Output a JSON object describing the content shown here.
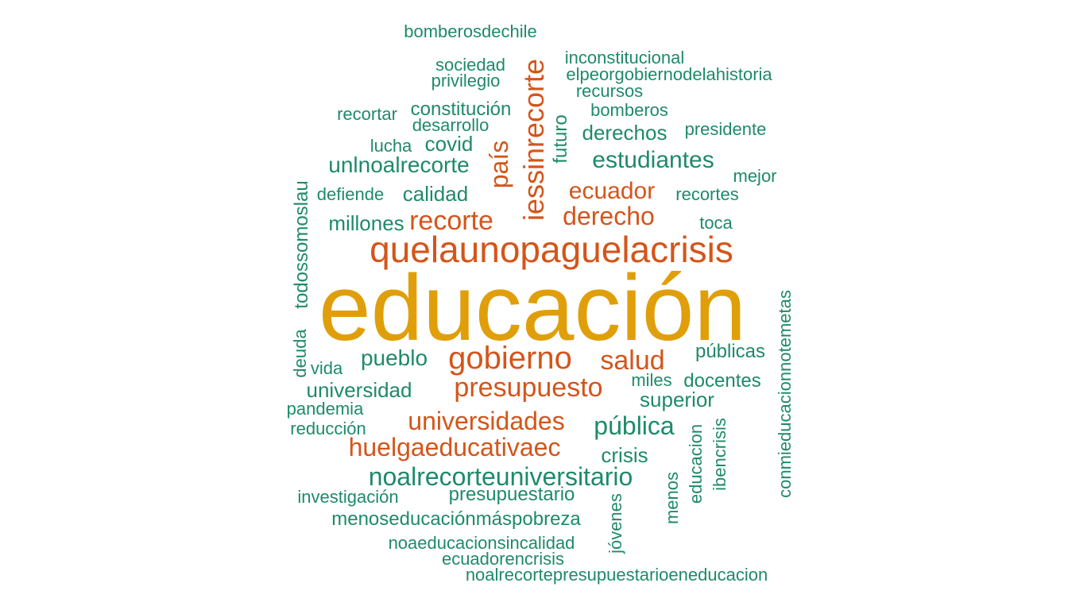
{
  "palette": {
    "top": "#E09F0A",
    "high": "#D4551A",
    "normal": "#1E8A6A"
  },
  "words": [
    {
      "id": "w0",
      "text": "educación",
      "tier": "top"
    },
    {
      "id": "w1",
      "text": "quelaunopaguelacrisis",
      "tier": "high"
    },
    {
      "id": "w2",
      "text": "iessinrecorte",
      "tier": "high"
    },
    {
      "id": "w3",
      "text": "país",
      "tier": "high"
    },
    {
      "id": "w4",
      "text": "recorte",
      "tier": "high"
    },
    {
      "id": "w5",
      "text": "derecho",
      "tier": "high"
    },
    {
      "id": "w6",
      "text": "ecuador",
      "tier": "high"
    },
    {
      "id": "w7",
      "text": "gobierno",
      "tier": "high"
    },
    {
      "id": "w8",
      "text": "salud",
      "tier": "high"
    },
    {
      "id": "w9",
      "text": "presupuesto",
      "tier": "high"
    },
    {
      "id": "w10",
      "text": "universidades",
      "tier": "high"
    },
    {
      "id": "w11",
      "text": "huelgaeducativaec",
      "tier": "high"
    },
    {
      "id": "w12",
      "text": "bomberosdechile",
      "tier": "normal"
    },
    {
      "id": "w13",
      "text": "sociedad",
      "tier": "normal"
    },
    {
      "id": "w14",
      "text": "privilegio",
      "tier": "normal"
    },
    {
      "id": "w15",
      "text": "inconstitucional",
      "tier": "normal"
    },
    {
      "id": "w16",
      "text": "elpeorgobiernodelahistoria",
      "tier": "normal"
    },
    {
      "id": "w17",
      "text": "recursos",
      "tier": "normal"
    },
    {
      "id": "w18",
      "text": "recortar",
      "tier": "normal"
    },
    {
      "id": "w19",
      "text": "constitución",
      "tier": "normal"
    },
    {
      "id": "w20",
      "text": "desarrollo",
      "tier": "normal"
    },
    {
      "id": "w21",
      "text": "bomberos",
      "tier": "normal"
    },
    {
      "id": "w22",
      "text": "futuro",
      "tier": "normal"
    },
    {
      "id": "w23",
      "text": "derechos",
      "tier": "normal"
    },
    {
      "id": "w24",
      "text": "presidente",
      "tier": "normal"
    },
    {
      "id": "w25",
      "text": "lucha",
      "tier": "normal"
    },
    {
      "id": "w26",
      "text": "covid",
      "tier": "normal"
    },
    {
      "id": "w27",
      "text": "estudiantes",
      "tier": "normal"
    },
    {
      "id": "w28",
      "text": "unlnoalrecorte",
      "tier": "normal"
    },
    {
      "id": "w29",
      "text": "mejor",
      "tier": "normal"
    },
    {
      "id": "w30",
      "text": "todossomoslau",
      "tier": "normal"
    },
    {
      "id": "w31",
      "text": "defiende",
      "tier": "normal"
    },
    {
      "id": "w32",
      "text": "calidad",
      "tier": "normal"
    },
    {
      "id": "w33",
      "text": "recortes",
      "tier": "normal"
    },
    {
      "id": "w34",
      "text": "millones",
      "tier": "normal"
    },
    {
      "id": "w35",
      "text": "toca",
      "tier": "normal"
    },
    {
      "id": "w36",
      "text": "conmieducacionnotemetas",
      "tier": "normal"
    },
    {
      "id": "w37",
      "text": "públicas",
      "tier": "normal"
    },
    {
      "id": "w38",
      "text": "deuda",
      "tier": "normal"
    },
    {
      "id": "w39",
      "text": "vida",
      "tier": "normal"
    },
    {
      "id": "w40",
      "text": "pueblo",
      "tier": "normal"
    },
    {
      "id": "w41",
      "text": "miles",
      "tier": "normal"
    },
    {
      "id": "w42",
      "text": "docentes",
      "tier": "normal"
    },
    {
      "id": "w43",
      "text": "universidad",
      "tier": "normal"
    },
    {
      "id": "w44",
      "text": "superior",
      "tier": "normal"
    },
    {
      "id": "w45",
      "text": "pandemia",
      "tier": "normal"
    },
    {
      "id": "w46",
      "text": "pública",
      "tier": "normal"
    },
    {
      "id": "w47",
      "text": "ibencrisis",
      "tier": "normal"
    },
    {
      "id": "w48",
      "text": "educacion",
      "tier": "normal"
    },
    {
      "id": "w49",
      "text": "reducción",
      "tier": "normal"
    },
    {
      "id": "w50",
      "text": "crisis",
      "tier": "normal"
    },
    {
      "id": "w51",
      "text": "noalrecorteuniversitario",
      "tier": "normal"
    },
    {
      "id": "w52",
      "text": "menos",
      "tier": "normal"
    },
    {
      "id": "w53",
      "text": "investigación",
      "tier": "normal"
    },
    {
      "id": "w54",
      "text": "presupuestario",
      "tier": "normal"
    },
    {
      "id": "w55",
      "text": "menoseducaciónmáspobreza",
      "tier": "normal"
    },
    {
      "id": "w56",
      "text": "jóvenes",
      "tier": "normal"
    },
    {
      "id": "w57",
      "text": "noaeducacionsincalidad",
      "tier": "normal"
    },
    {
      "id": "w58",
      "text": "ecuadorencrisis",
      "tier": "normal"
    },
    {
      "id": "w59",
      "text": "noalrecortepresupuestarioeneducacion",
      "tier": "normal"
    }
  ]
}
